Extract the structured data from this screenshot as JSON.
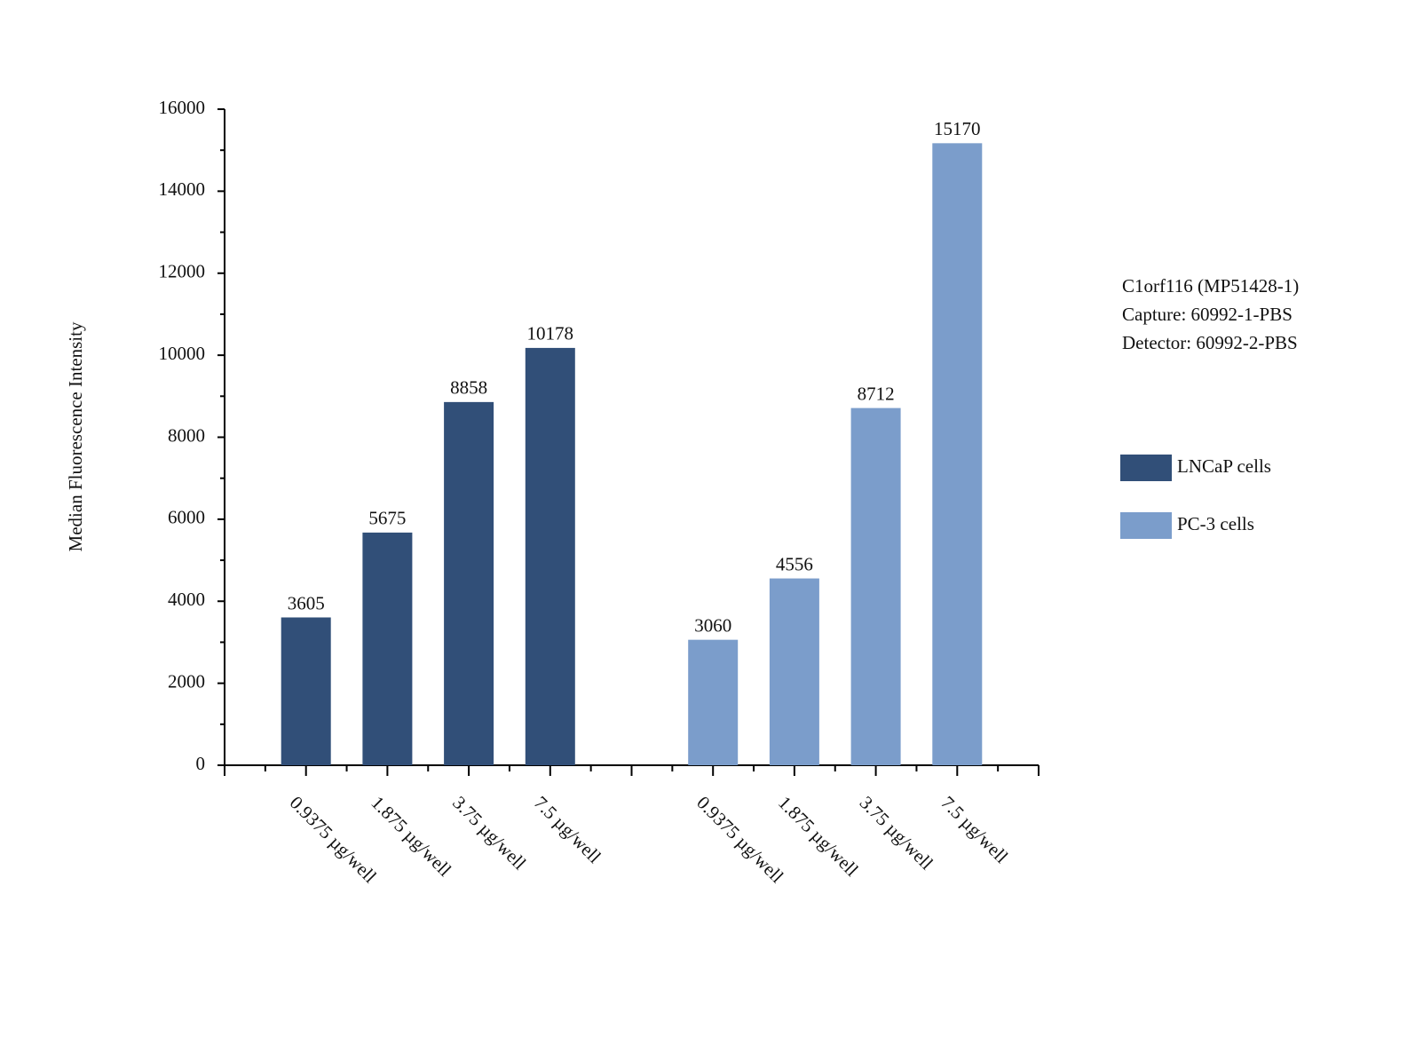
{
  "chart_data": {
    "type": "bar",
    "y_label": "Median Fluorescence Intensity",
    "annotation": [
      "C1orf116 (MP51428-1)",
      "Capture: 60992-1-PBS",
      "Detector: 60992-2-PBS"
    ],
    "categories": [
      "0.9375 µg/well",
      "1.875 µg/well",
      "3.75 µg/well",
      "7.5 µg/well"
    ],
    "series": [
      {
        "name": "LNCaP cells",
        "color": "#314f78",
        "values": [
          3605,
          5675,
          8858,
          10178
        ]
      },
      {
        "name": "PC-3 cells",
        "color": "#7b9dcb",
        "values": [
          3060,
          4556,
          8712,
          15170
        ]
      }
    ],
    "ylim": [
      0,
      16000
    ],
    "yticks": [
      0,
      2000,
      4000,
      6000,
      8000,
      10000,
      12000,
      14000,
      16000
    ],
    "grid": false,
    "legend": "right"
  }
}
